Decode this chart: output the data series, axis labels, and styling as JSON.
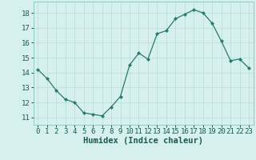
{
  "x": [
    0,
    1,
    2,
    3,
    4,
    5,
    6,
    7,
    8,
    9,
    10,
    11,
    12,
    13,
    14,
    15,
    16,
    17,
    18,
    19,
    20,
    21,
    22,
    23
  ],
  "y": [
    14.2,
    13.6,
    12.8,
    12.2,
    12.0,
    11.3,
    11.2,
    11.1,
    11.7,
    12.4,
    14.5,
    15.3,
    14.9,
    16.6,
    16.8,
    17.6,
    17.9,
    18.2,
    18.0,
    17.3,
    16.1,
    14.8,
    14.9,
    14.3
  ],
  "line_color": "#2a7a6e",
  "marker_color": "#2a7a6e",
  "bg_color": "#d5f0ed",
  "grid_color": "#b8deda",
  "xlabel": "Humidex (Indice chaleur)",
  "xlim": [
    -0.5,
    23.5
  ],
  "ylim": [
    10.5,
    18.75
  ],
  "yticks": [
    11,
    12,
    13,
    14,
    15,
    16,
    17,
    18
  ],
  "xticks": [
    0,
    1,
    2,
    3,
    4,
    5,
    6,
    7,
    8,
    9,
    10,
    11,
    12,
    13,
    14,
    15,
    16,
    17,
    18,
    19,
    20,
    21,
    22,
    23
  ],
  "tick_fontsize": 6.5,
  "xlabel_fontsize": 7.5
}
